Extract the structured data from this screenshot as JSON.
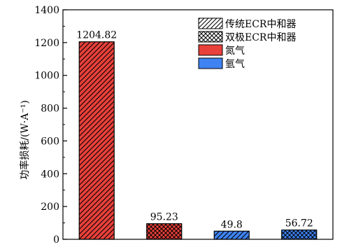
{
  "chart_data": {
    "type": "bar",
    "ylabel": "功率损耗/(W·A⁻¹)",
    "xlabel": "",
    "ylim": [
      0,
      1400
    ],
    "yticks": [
      0,
      200,
      400,
      600,
      800,
      1000,
      1200,
      1400
    ],
    "grid": false,
    "legend_position": "top-right",
    "categories": [
      "",
      "",
      "",
      ""
    ],
    "values": [
      1204.82,
      95.23,
      49.8,
      56.72
    ],
    "value_labels": [
      "1204.82",
      "95.23",
      "49.8",
      "56.72"
    ],
    "bars": [
      {
        "value": 1204.82,
        "gas": "nitrogen",
        "neutralizer": "conventional"
      },
      {
        "value": 95.23,
        "gas": "nitrogen",
        "neutralizer": "bipolar"
      },
      {
        "value": 49.8,
        "gas": "argon",
        "neutralizer": "conventional"
      },
      {
        "value": 56.72,
        "gas": "argon",
        "neutralizer": "bipolar"
      }
    ],
    "legend": [
      {
        "label": "传统ECR中和器",
        "swatch": "conventional"
      },
      {
        "label": "双极ECR中和器",
        "swatch": "bipolar"
      },
      {
        "label": "氮气",
        "swatch": "nitrogen"
      },
      {
        "label": "氩气",
        "swatch": "argon"
      }
    ],
    "colors": {
      "nitrogen": "#e8403a",
      "argon": "#3f83f2",
      "swatch_bg": "#ffffff"
    }
  }
}
